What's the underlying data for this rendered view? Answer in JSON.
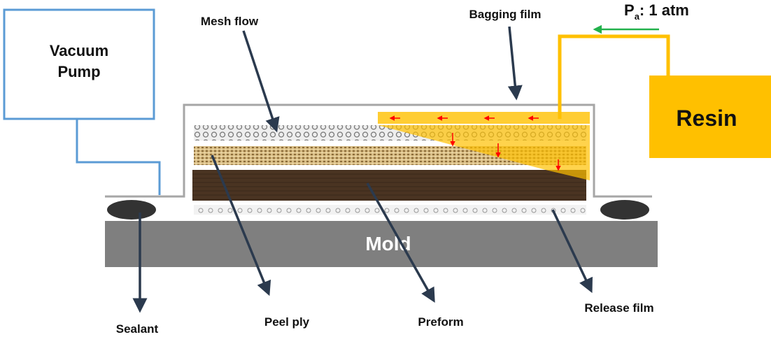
{
  "labels": {
    "vacuum_pump_line1": "Vacuum",
    "vacuum_pump_line2": "Pump",
    "resin": "Resin",
    "mold": "Mold",
    "pressure_p": "P",
    "pressure_sub": "a",
    "pressure_rest": ": 1 atm",
    "mesh_flow": "Mesh flow",
    "bagging_film": "Bagging film",
    "sealant": "Sealant",
    "peel_ply": "Peel ply",
    "preform": "Preform",
    "release_film": "Release film"
  },
  "colors": {
    "vacuum_line": "#5b9bd5",
    "resin": "#ffc000",
    "mold": "#7f7f7f",
    "bag": "#a6a6a6",
    "preform": "#4a3422",
    "peel_ply": "#c9a86e",
    "flow_arrow": "#ff0000",
    "pressure_arrow": "#22b14c",
    "leader": "#2b3a4e"
  }
}
